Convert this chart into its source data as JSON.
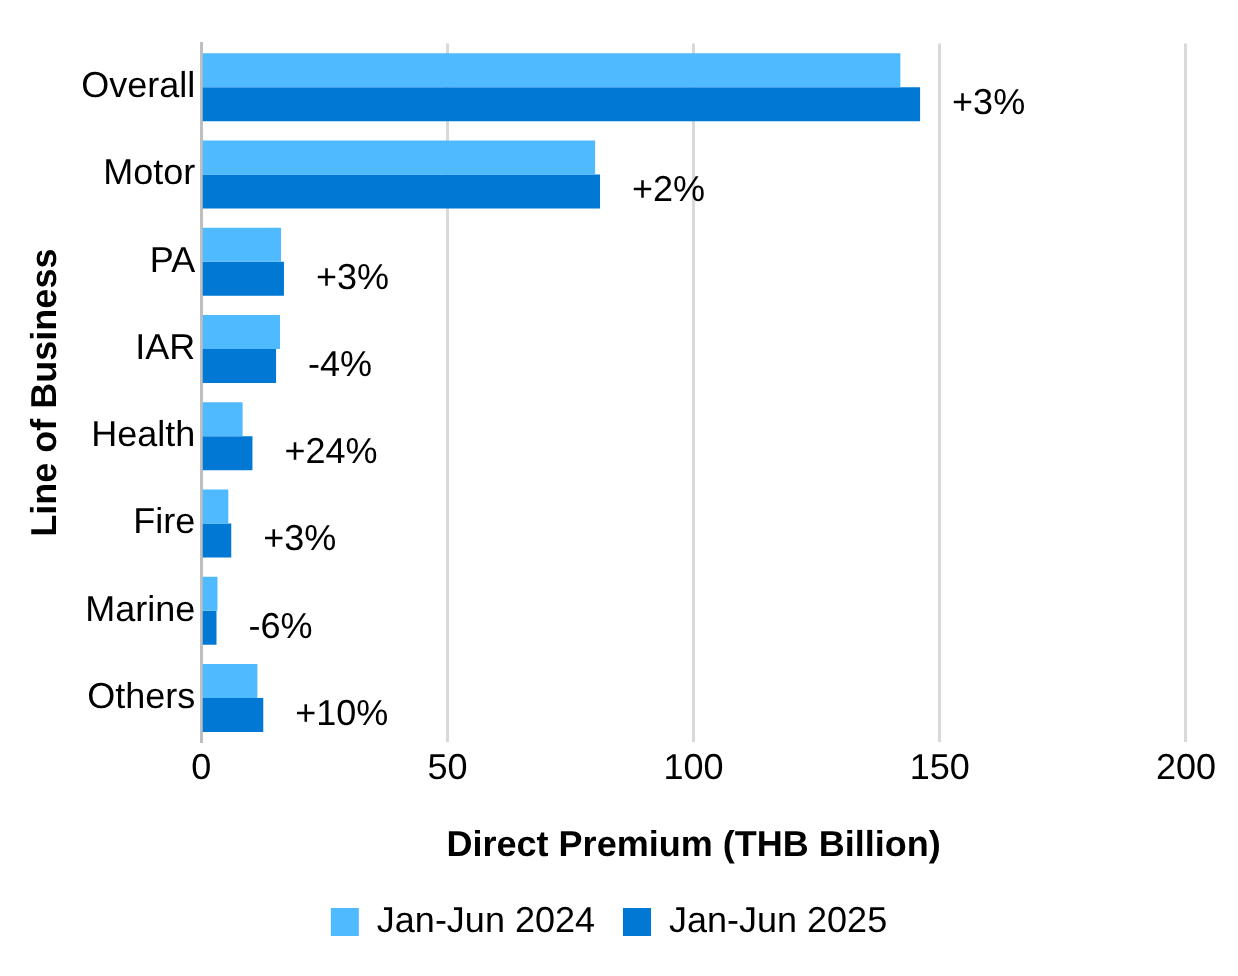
{
  "chart_data": {
    "type": "bar",
    "orientation": "horizontal",
    "xlabel": "Direct Premium (THB Billion)",
    "ylabel": "Line of Business",
    "categories": [
      "Overall",
      "Motor",
      "PA",
      "IAR",
      "Health",
      "Fire",
      "Marine",
      "Others"
    ],
    "series": [
      {
        "name": "Jan-Jun 2024",
        "color": "#4fbaff",
        "values": [
          142,
          80,
          16.2,
          16,
          8.4,
          5.5,
          3.3,
          11.4
        ]
      },
      {
        "name": "Jan-Jun 2025",
        "color": "#0078d4",
        "values": [
          146,
          81,
          16.8,
          15.2,
          10.4,
          6.1,
          3.1,
          12.6
        ]
      }
    ],
    "xlim": [
      0,
      200
    ],
    "xticks": [
      0,
      50,
      100,
      150,
      200
    ],
    "grid": "x",
    "legend": "bottom",
    "annotations": [
      {
        "text": "+3%",
        "x": 146,
        "y": "Overall"
      },
      {
        "text": "+2%",
        "x": 81,
        "y": "Motor"
      },
      {
        "text": "+3%",
        "x": 16.8,
        "y": "PA"
      },
      {
        "text": "-4%",
        "x": 15.2,
        "y": "IAR"
      },
      {
        "text": "+24%",
        "x": 10.4,
        "y": "Health"
      },
      {
        "text": "+3%",
        "x": 6.1,
        "y": "Fire"
      },
      {
        "text": "-6%",
        "x": 3.1,
        "y": "Marine"
      },
      {
        "text": "+10%",
        "x": 12.6,
        "y": "Others"
      }
    ]
  }
}
